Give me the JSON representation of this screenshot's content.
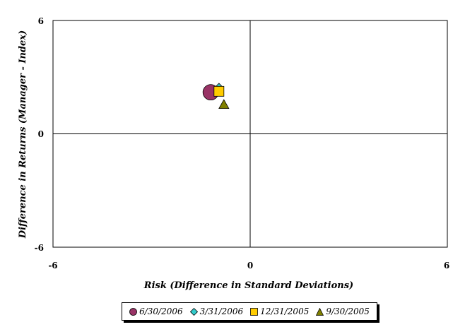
{
  "chart_data": {
    "type": "scatter",
    "title": "",
    "xlabel": "Risk (Difference in Standard Deviations)",
    "ylabel": "Difference in Returns (Manager - Index)",
    "xlim": [
      -6,
      6
    ],
    "ylim": [
      -6,
      6
    ],
    "x_ticks": [
      "-6",
      "0",
      "6"
    ],
    "y_ticks": [
      "6",
      "0",
      "-6"
    ],
    "grid": false,
    "legend_position": "bottom",
    "series": [
      {
        "name": "6/30/2006",
        "marker": "circle",
        "color": "#993366",
        "x": -1.2,
        "y": 2.2
      },
      {
        "name": "3/31/2006",
        "marker": "diamond",
        "color": "#33CCCC",
        "x": -0.95,
        "y": 2.45
      },
      {
        "name": "12/31/2005",
        "marker": "square",
        "color": "#FFCC00",
        "x": -0.95,
        "y": 2.25
      },
      {
        "name": "9/30/2005",
        "marker": "triangle",
        "color": "#808000",
        "x": -0.8,
        "y": 1.55
      }
    ]
  }
}
